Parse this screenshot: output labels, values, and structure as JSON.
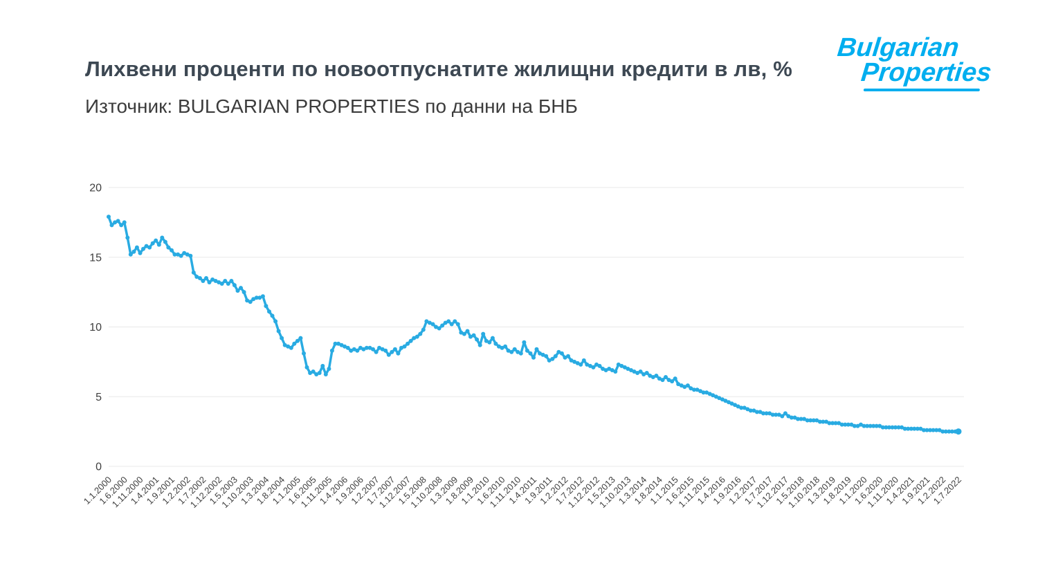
{
  "header": {
    "title": "Лихвени проценти по новоотпуснатите жилищни кредити в лв, %",
    "source": "Източник: BULGARIAN PROPERTIES по данни на БНБ"
  },
  "logo": {
    "line1": "Bulgarian",
    "line2": "Properties",
    "color": "#00aeef"
  },
  "chart_data": {
    "type": "line",
    "title": "Лихвени проценти по новоотпуснатите жилищни кредити в лв, %",
    "x_start": "1.1.2000",
    "x_end": "1.7.2022",
    "x_frequency": "monthly",
    "tick_every": 5,
    "x_tick_labels": [
      "1.1.2000",
      "1.6.2000",
      "1.11.2000",
      "1.4.2001",
      "1.9.2001",
      "1.2.2002",
      "1.7.2002",
      "1.12.2002",
      "1.5.2003",
      "1.10.2003",
      "1.3.2004",
      "1.8.2004",
      "1.1.2005",
      "1.6.2005",
      "1.11.2005",
      "1.4.2006",
      "1.9.2006",
      "1.2.2007",
      "1.7.2007",
      "1.12.2007",
      "1.5.2008",
      "1.10.2008",
      "1.3.2009",
      "1.8.2009",
      "1.1.2010",
      "1.6.2010",
      "1.11.2010",
      "1.4.2011",
      "1.9.2011",
      "1.2.2012",
      "1.7.2012",
      "1.12.2012",
      "1.5.2013",
      "1.10.2013",
      "1.3.2014",
      "1.8.2014",
      "1.1.2015",
      "1.6.2015",
      "1.11.2015",
      "1.4.2016",
      "1.9.2016",
      "1.2.2017",
      "1.7.2017",
      "1.12.2017",
      "1.5.2018",
      "1.10.2018",
      "1.3.2019",
      "1.8.2019",
      "1.1.2020",
      "1.6.2020",
      "1.11.2020",
      "1.4.2021",
      "1.9.2021",
      "1.2.2022",
      "1.7.2022"
    ],
    "values": [
      17.9,
      17.3,
      17.5,
      17.6,
      17.3,
      17.5,
      16.4,
      15.2,
      15.4,
      15.7,
      15.3,
      15.6,
      15.8,
      15.7,
      16.0,
      16.2,
      15.9,
      16.4,
      16.1,
      15.7,
      15.5,
      15.2,
      15.2,
      15.1,
      15.3,
      15.2,
      15.1,
      13.9,
      13.6,
      13.5,
      13.3,
      13.5,
      13.2,
      13.4,
      13.3,
      13.2,
      13.1,
      13.3,
      13.1,
      13.3,
      13.0,
      12.6,
      12.8,
      12.5,
      11.9,
      11.8,
      12.0,
      12.1,
      12.1,
      12.2,
      11.5,
      11.1,
      10.8,
      10.4,
      9.7,
      9.2,
      8.7,
      8.6,
      8.5,
      8.8,
      9.0,
      9.2,
      8.1,
      7.1,
      6.7,
      6.8,
      6.6,
      6.7,
      7.2,
      6.6,
      7.0,
      8.3,
      8.8,
      8.8,
      8.7,
      8.6,
      8.5,
      8.3,
      8.4,
      8.3,
      8.5,
      8.4,
      8.5,
      8.5,
      8.4,
      8.2,
      8.5,
      8.4,
      8.3,
      8.0,
      8.2,
      8.4,
      8.1,
      8.5,
      8.6,
      8.8,
      9.0,
      9.2,
      9.3,
      9.5,
      9.8,
      10.4,
      10.3,
      10.2,
      10.0,
      9.9,
      10.1,
      10.3,
      10.4,
      10.2,
      10.4,
      10.2,
      9.6,
      9.5,
      9.7,
      9.3,
      9.4,
      9.1,
      8.7,
      9.5,
      9.0,
      8.9,
      9.2,
      8.8,
      8.6,
      8.5,
      8.6,
      8.3,
      8.2,
      8.4,
      8.2,
      8.1,
      8.9,
      8.3,
      8.1,
      7.8,
      8.4,
      8.1,
      8.0,
      7.9,
      7.6,
      7.7,
      7.9,
      8.2,
      8.1,
      7.8,
      7.9,
      7.6,
      7.5,
      7.4,
      7.3,
      7.6,
      7.3,
      7.2,
      7.1,
      7.3,
      7.2,
      7.0,
      6.9,
      7.0,
      6.9,
      6.8,
      7.3,
      7.2,
      7.1,
      7.0,
      6.9,
      6.8,
      6.7,
      6.8,
      6.6,
      6.7,
      6.5,
      6.4,
      6.5,
      6.3,
      6.2,
      6.4,
      6.2,
      6.1,
      6.3,
      5.9,
      5.8,
      5.7,
      5.8,
      5.6,
      5.5,
      5.5,
      5.4,
      5.3,
      5.3,
      5.2,
      5.1,
      5.0,
      4.9,
      4.8,
      4.7,
      4.6,
      4.5,
      4.4,
      4.3,
      4.2,
      4.2,
      4.1,
      4.0,
      4.0,
      3.9,
      3.9,
      3.8,
      3.8,
      3.8,
      3.7,
      3.7,
      3.7,
      3.6,
      3.8,
      3.6,
      3.5,
      3.5,
      3.4,
      3.4,
      3.4,
      3.3,
      3.3,
      3.3,
      3.3,
      3.2,
      3.2,
      3.2,
      3.1,
      3.1,
      3.1,
      3.1,
      3.0,
      3.0,
      3.0,
      3.0,
      2.9,
      2.9,
      3.0,
      2.9,
      2.9,
      2.9,
      2.9,
      2.9,
      2.9,
      2.8,
      2.8,
      2.8,
      2.8,
      2.8,
      2.8,
      2.8,
      2.7,
      2.7,
      2.7,
      2.7,
      2.7,
      2.7,
      2.6,
      2.6,
      2.6,
      2.6,
      2.6,
      2.6,
      2.5,
      2.5,
      2.5,
      2.5,
      2.5,
      2.5
    ],
    "y_ticks": [
      0,
      5,
      10,
      15,
      20
    ],
    "ylim": [
      0,
      20
    ],
    "xlabel": "",
    "ylabel": "",
    "legend": "none",
    "grid": "horizontal",
    "line_color": "#29abe2",
    "grid_color": "#e8e8e8",
    "tick_label_color": "#3f3f3f"
  }
}
